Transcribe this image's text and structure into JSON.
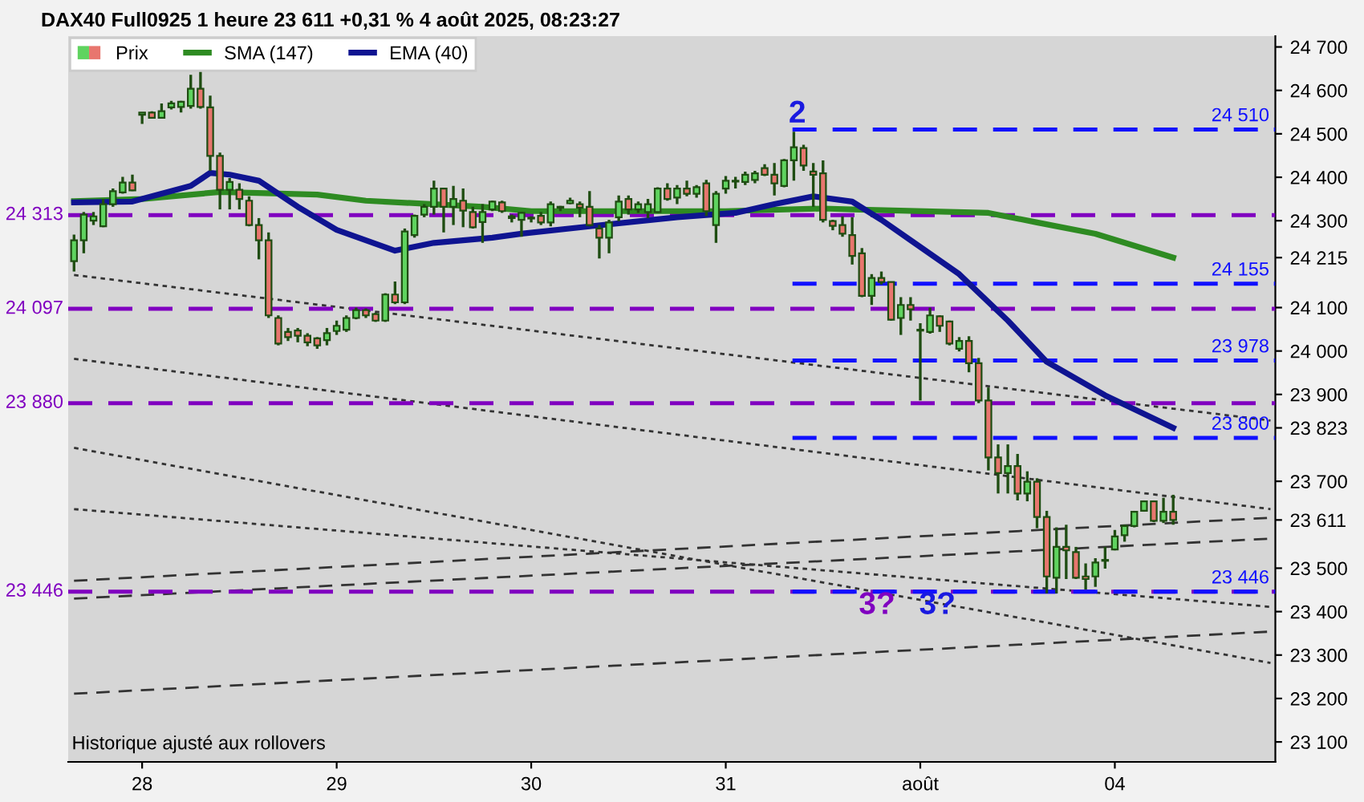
{
  "chart_data": {
    "type": "candlestick",
    "title": "DAX40 Full0925 1 heure 23 611 +0,31 % 4 août 2025, 08:23:27",
    "categories": [
      null,
      null,
      null,
      null,
      null,
      null,
      null,
      "28",
      null,
      null,
      null,
      null,
      null,
      null,
      null,
      null,
      null,
      null,
      null,
      null,
      null,
      null,
      null,
      null,
      null,
      null,
      null,
      "29",
      null,
      null,
      null,
      null,
      null,
      null,
      null,
      null,
      null,
      null,
      null,
      null,
      null,
      null,
      null,
      null,
      null,
      null,
      null,
      "30",
      null,
      null,
      null,
      null,
      null,
      null,
      null,
      null,
      null,
      null,
      null,
      null,
      null,
      null,
      null,
      null,
      null,
      null,
      null,
      "31",
      null,
      null,
      null,
      null,
      null,
      null,
      null,
      null,
      null,
      null,
      null,
      null,
      null,
      null,
      null,
      null,
      null,
      null,
      null,
      "août",
      null,
      null,
      null,
      null,
      null,
      null,
      null,
      null,
      null,
      null,
      null,
      null,
      null,
      null,
      null,
      null,
      null,
      null,
      null,
      "04",
      null,
      null,
      null,
      null,
      null,
      null,
      null,
      null,
      null,
      null,
      null,
      null,
      null,
      null,
      null,
      null
    ],
    "ylim": [
      23054,
      24725
    ],
    "yticks": [
      {
        "value": 23100,
        "label": "23 100"
      },
      {
        "value": 23200,
        "label": "23 200"
      },
      {
        "value": 23300,
        "label": "23 300"
      },
      {
        "value": 23400,
        "label": "23 400"
      },
      {
        "value": 23500,
        "label": "23 500"
      },
      {
        "value": 23611,
        "label": "23 611"
      },
      {
        "value": 23700,
        "label": "23 700"
      },
      {
        "value": 23823,
        "label": "23 823"
      },
      {
        "value": 23900,
        "label": "23 900"
      },
      {
        "value": 24000,
        "label": "24 000"
      },
      {
        "value": 24100,
        "label": "24 100"
      },
      {
        "value": 24215,
        "label": "24 215"
      },
      {
        "value": 24300,
        "label": "24 300"
      },
      {
        "value": 24400,
        "label": "24 400"
      },
      {
        "value": 24500,
        "label": "24 500"
      },
      {
        "value": 24600,
        "label": "24 600"
      },
      {
        "value": 24700,
        "label": "24 700"
      }
    ],
    "legend": "top left",
    "series": [
      {
        "name": "Prix",
        "colors": [
          "#5fd35f",
          "#5fd35f",
          "#5fd35f",
          "#5fd35f",
          "#5fd35f",
          "#5fd35f",
          "#e8766e",
          "#5fd35f",
          "#e8766e",
          "#5fd35f",
          "#5fd35f",
          "#5fd35f",
          "#5fd35f",
          "#e8766e",
          "#e8766e",
          "#e8766e",
          "#5fd35f",
          "#e8766e",
          "#e8766e",
          "#e8766e",
          "#e8766e",
          "#e8766e",
          "#e8766e",
          "#e8766e",
          "#e8766e",
          "#e8766e",
          "#5fd35f",
          "#5fd35f",
          "#5fd35f",
          "#5fd35f",
          "#e8766e",
          "#e8766e",
          "#5fd35f",
          "#e8766e",
          "#5fd35f",
          "#5fd35f",
          "#5fd35f",
          "#5fd35f",
          "#e8766e",
          "#5fd35f",
          "#e8766e",
          "#e8766e",
          "#5fd35f",
          "#5fd35f",
          "#e8766e",
          "#5fd35f",
          "#5fd35f",
          "#5fd35f",
          "#e8766e",
          "#5fd35f",
          "#5fd35f",
          "#5fd35f",
          "#e8766e",
          "#e8766e",
          "#e8766e",
          "#5fd35f",
          "#5fd35f",
          "#e8766e",
          "#5fd35f",
          "#5fd35f",
          "#5fd35f",
          "#e8766e",
          "#5fd35f",
          "#e8766e",
          "#5fd35f",
          "#e8766e",
          "#5fd35f",
          "#5fd35f",
          "#5fd35f",
          "#5fd35f",
          "#5fd35f",
          "#e8766e",
          "#e8766e",
          "#5fd35f",
          "#5fd35f",
          "#e8766e",
          "#e8766e",
          "#e8766e",
          "#e8766e",
          "#e8766e",
          "#e8766e",
          "#e8766e",
          "#5fd35f",
          "#e8766e",
          "#e8766e",
          "#5fd35f",
          "#e8766e",
          "#5fd35f",
          "#5fd35f",
          "#e8766e",
          "#e8766e",
          "#5fd35f",
          "#e8766e",
          "#e8766e",
          "#e8766e",
          "#e8766e",
          "#5fd35f",
          "#e8766e",
          "#5fd35f",
          "#e8766e",
          "#e8766e",
          "#5fd35f",
          "#e8766e",
          "#e8766e",
          "#e8766e",
          "#5fd35f",
          "#5fd35f",
          "#5fd35f",
          "#5fd35f",
          "#5fd35f",
          "#5fd35f",
          "#e8766e",
          "#5fd35f",
          "#e8766e",
          null,
          null,
          null,
          null,
          null,
          null,
          null,
          null,
          null,
          null
        ],
        "ohlc": [
          [
            24207,
            24268,
            24183,
            24255
          ],
          [
            24255,
            24320,
            24225,
            24314
          ],
          [
            24300,
            24320,
            24290,
            24310
          ],
          [
            24287,
            24350,
            24285,
            24338
          ],
          [
            24338,
            24374,
            24332,
            24368
          ],
          [
            24365,
            24401,
            24362,
            24388
          ],
          [
            24388,
            24406,
            24368,
            24370
          ],
          [
            24544,
            24549,
            24523,
            24549
          ],
          [
            24549,
            24552,
            24535,
            24537
          ],
          [
            24537,
            24570,
            24535,
            24552
          ],
          [
            24561,
            24576,
            24556,
            24570
          ],
          [
            24562,
            24576,
            24549,
            24574
          ],
          [
            24564,
            24636,
            24558,
            24604
          ],
          [
            24604,
            24648,
            24558,
            24562
          ],
          [
            24561,
            24588,
            24415,
            24449
          ],
          [
            24449,
            24457,
            24326,
            24371
          ],
          [
            24371,
            24398,
            24326,
            24389
          ],
          [
            24371,
            24386,
            24326,
            24350
          ],
          [
            24346,
            24356,
            24287,
            24290
          ],
          [
            24290,
            24306,
            24211,
            24255
          ],
          [
            24255,
            24273,
            24076,
            24082
          ],
          [
            24076,
            24082,
            24013,
            24017
          ],
          [
            24044,
            24053,
            24023,
            24032
          ],
          [
            24047,
            24053,
            24020,
            24035
          ],
          [
            24035,
            24041,
            24011,
            24020
          ],
          [
            24029,
            24032,
            24005,
            24013
          ],
          [
            24025,
            24053,
            24013,
            24041
          ],
          [
            24046,
            24070,
            24037,
            24058
          ],
          [
            24049,
            24082,
            24044,
            24076
          ],
          [
            24076,
            24100,
            24073,
            24094
          ],
          [
            24094,
            24098,
            24076,
            24082
          ],
          [
            24085,
            24088,
            24067,
            24070
          ],
          [
            24070,
            24133,
            24067,
            24130
          ],
          [
            24130,
            24160,
            24108,
            24112
          ],
          [
            24112,
            24282,
            24108,
            24275
          ],
          [
            24267,
            24314,
            24261,
            24311
          ],
          [
            24314,
            24338,
            24308,
            24332
          ],
          [
            24332,
            24392,
            24314,
            24374
          ],
          [
            24374,
            24374,
            24273,
            24332
          ],
          [
            24332,
            24380,
            24290,
            24350
          ],
          [
            24346,
            24374,
            24285,
            24323
          ],
          [
            24320,
            24332,
            24282,
            24285
          ],
          [
            24297,
            24338,
            24249,
            24320
          ],
          [
            24326,
            24346,
            24322,
            24344
          ],
          [
            24342,
            24346,
            24318,
            24322
          ],
          [
            24306,
            24314,
            24296,
            24310
          ],
          [
            24302,
            24320,
            24263,
            24318
          ],
          [
            24305,
            24310,
            24296,
            24307
          ],
          [
            24311,
            24320,
            24290,
            24296
          ],
          [
            24296,
            24344,
            24287,
            24338
          ],
          [
            24330,
            24334,
            24322,
            24332
          ],
          [
            24340,
            24353,
            24338,
            24346
          ],
          [
            24338,
            24344,
            24308,
            24330
          ],
          [
            24332,
            24368,
            24287,
            24290
          ],
          [
            24282,
            24290,
            24213,
            24261
          ],
          [
            24261,
            24302,
            24225,
            24296
          ],
          [
            24308,
            24358,
            24299,
            24344
          ],
          [
            24350,
            24358,
            24314,
            24326
          ],
          [
            24326,
            24344,
            24318,
            24338
          ],
          [
            24320,
            24350,
            24306,
            24338
          ],
          [
            24320,
            24377,
            24318,
            24374
          ],
          [
            24374,
            24386,
            24346,
            24350
          ],
          [
            24353,
            24382,
            24338,
            24374
          ],
          [
            24374,
            24392,
            24356,
            24362
          ],
          [
            24362,
            24382,
            24353,
            24377
          ],
          [
            24386,
            24394,
            24311,
            24322
          ],
          [
            24290,
            24368,
            24249,
            24362
          ],
          [
            24374,
            24403,
            24362,
            24392
          ],
          [
            24390,
            24401,
            24374,
            24392
          ],
          [
            24389,
            24413,
            24382,
            24406
          ],
          [
            24394,
            24415,
            24386,
            24409
          ],
          [
            24421,
            24430,
            24403,
            24406
          ],
          [
            24406,
            24433,
            24358,
            24386
          ],
          [
            24380,
            24442,
            24377,
            24439
          ],
          [
            24439,
            24505,
            24392,
            24469
          ],
          [
            24467,
            24475,
            24415,
            24427
          ],
          [
            24413,
            24433,
            24332,
            24406
          ],
          [
            24409,
            24439,
            24296,
            24302
          ],
          [
            24299,
            24302,
            24278,
            24288
          ],
          [
            24290,
            24310,
            24263,
            24270
          ],
          [
            24267,
            24308,
            24199,
            24219
          ],
          [
            24225,
            24237,
            24124,
            24127
          ],
          [
            24127,
            24177,
            24106,
            24168
          ],
          [
            24168,
            24183,
            24153,
            24159
          ],
          [
            24159,
            24159,
            24070,
            24072
          ],
          [
            24076,
            24124,
            24037,
            24106
          ],
          [
            24106,
            24124,
            24070,
            24096
          ],
          [
            24047,
            24064,
            23886,
            24049
          ],
          [
            24044,
            24100,
            24040,
            24082
          ],
          [
            24080,
            24082,
            24044,
            24058
          ],
          [
            24068,
            24070,
            24013,
            24017
          ],
          [
            24005,
            24032,
            23999,
            24023
          ],
          [
            24023,
            24034,
            23951,
            23972
          ],
          [
            23972,
            23984,
            23880,
            23886
          ],
          [
            23886,
            23916,
            23725,
            23755
          ],
          [
            23755,
            23785,
            23672,
            23719
          ],
          [
            23719,
            23785,
            23672,
            23735
          ],
          [
            23735,
            23763,
            23656,
            23672
          ],
          [
            23672,
            23723,
            23654,
            23699
          ],
          [
            23699,
            23707,
            23592,
            23618
          ],
          [
            23618,
            23632,
            23442,
            23481
          ],
          [
            23478,
            23594,
            23442,
            23549
          ],
          [
            23549,
            23600,
            23475,
            23541
          ],
          [
            23537,
            23549,
            23475,
            23478
          ],
          [
            23481,
            23511,
            23451,
            23475
          ],
          [
            23481,
            23523,
            23457,
            23513
          ],
          [
            23517,
            23549,
            23499,
            23519
          ],
          [
            23543,
            23588,
            23541,
            23573
          ],
          [
            23576,
            23600,
            23561,
            23597
          ],
          [
            23597,
            23632,
            23594,
            23630
          ],
          [
            23632,
            23656,
            23630,
            23654
          ],
          [
            23654,
            23656,
            23606,
            23609
          ],
          [
            23609,
            23662,
            23604,
            23630
          ],
          [
            23630,
            23669,
            23600,
            23611
          ],
          null,
          null,
          null,
          null,
          null,
          null,
          null,
          null,
          null,
          null
        ]
      },
      {
        "name": "SMA (147)",
        "type": "line",
        "color": "#2e8b22",
        "values": [
          24345,
          null,
          null,
          null,
          null,
          null,
          null,
          24350,
          null,
          null,
          null,
          null,
          null,
          null,
          null,
          24366,
          null,
          null,
          null,
          null,
          null,
          null,
          null,
          null,
          null,
          24360,
          null,
          null,
          null,
          null,
          24346,
          null,
          null,
          null,
          null,
          null,
          null,
          null,
          null,
          null,
          null,
          null,
          24332,
          null,
          null,
          null,
          null,
          24322,
          null,
          null,
          null,
          null,
          null,
          null,
          null,
          null,
          null,
          null,
          null,
          null,
          null,
          null,
          null,
          null,
          null,
          null,
          null,
          24322,
          null,
          null,
          null,
          null,
          null,
          null,
          null,
          null,
          null,
          24328,
          null,
          null,
          24326,
          null,
          null,
          null,
          null,
          null,
          null,
          null,
          null,
          null,
          null,
          null,
          null,
          null,
          24318,
          null,
          null,
          null,
          null,
          24296,
          null,
          null,
          null,
          null,
          null,
          24270,
          null,
          null,
          null,
          null,
          null,
          null,
          null,
          24215,
          null,
          null,
          null,
          null,
          null,
          null,
          null,
          null,
          null,
          null
        ]
      },
      {
        "name": "EMA (40)",
        "type": "line",
        "color": "#0f1491",
        "values": [
          24342,
          null,
          null,
          null,
          null,
          null,
          24344,
          null,
          null,
          null,
          null,
          null,
          24380,
          null,
          24410,
          null,
          24406,
          null,
          null,
          24392,
          null,
          null,
          null,
          24332,
          null,
          null,
          null,
          24279,
          null,
          null,
          null,
          null,
          null,
          24231,
          null,
          null,
          null,
          24249,
          null,
          null,
          null,
          null,
          null,
          24261,
          null,
          null,
          24270,
          null,
          null,
          null,
          null,
          null,
          null,
          24287,
          null,
          null,
          null,
          null,
          null,
          null,
          null,
          null,
          24308,
          null,
          null,
          null,
          null,
          null,
          24318,
          null,
          null,
          null,
          24338,
          null,
          null,
          null,
          24356,
          null,
          null,
          null,
          24344,
          null,
          null,
          24302,
          null,
          null,
          24255,
          null,
          null,
          null,
          null,
          24177,
          null,
          null,
          null,
          null,
          24070,
          null,
          null,
          null,
          23975,
          null,
          null,
          null,
          null,
          null,
          23898,
          null,
          null,
          null,
          null,
          null,
          null,
          23823,
          null,
          null,
          null,
          null,
          null,
          null,
          null,
          null,
          null,
          null
        ]
      },
      {
        "type": "line",
        "line_style": "dotted",
        "color": "#333333",
        "values": [
          24175,
          null,
          null,
          null,
          null,
          null,
          null,
          null,
          null,
          null,
          null,
          null,
          null,
          null,
          null,
          null,
          null,
          null,
          null,
          null,
          null,
          null,
          null,
          null,
          null,
          null,
          null,
          null,
          null,
          null,
          null,
          null,
          null,
          null,
          null,
          null,
          null,
          null,
          null,
          null,
          null,
          null,
          null,
          null,
          null,
          null,
          null,
          null,
          null,
          null,
          null,
          null,
          null,
          null,
          null,
          null,
          null,
          null,
          null,
          null,
          null,
          null,
          null,
          null,
          null,
          null,
          null,
          null,
          null,
          null,
          null,
          null,
          null,
          null,
          null,
          null,
          null,
          null,
          null,
          null,
          null,
          null,
          null,
          null,
          null,
          null,
          null,
          null,
          null,
          null,
          null,
          null,
          null,
          null,
          null,
          null,
          null,
          null,
          null,
          null,
          null,
          null,
          null,
          null,
          null,
          null,
          null,
          null,
          null,
          null,
          null,
          null,
          null,
          null,
          null,
          null,
          null,
          null,
          null,
          null,
          null,
          null,
          null,
          23840
        ]
      },
      {
        "type": "line",
        "line_style": "dotted",
        "color": "#333333",
        "values": [
          23982,
          null,
          null,
          null,
          null,
          null,
          null,
          null,
          null,
          null,
          null,
          null,
          null,
          null,
          null,
          null,
          null,
          null,
          null,
          null,
          null,
          null,
          null,
          null,
          null,
          null,
          null,
          null,
          null,
          null,
          null,
          null,
          null,
          null,
          null,
          null,
          null,
          null,
          null,
          null,
          null,
          null,
          null,
          null,
          null,
          null,
          null,
          null,
          null,
          null,
          null,
          null,
          null,
          null,
          null,
          null,
          null,
          null,
          null,
          null,
          null,
          null,
          null,
          null,
          null,
          null,
          null,
          null,
          null,
          null,
          null,
          null,
          null,
          null,
          null,
          null,
          null,
          null,
          null,
          null,
          null,
          null,
          null,
          null,
          null,
          null,
          null,
          null,
          null,
          null,
          null,
          null,
          null,
          null,
          null,
          null,
          null,
          null,
          null,
          null,
          null,
          null,
          null,
          null,
          null,
          null,
          null,
          null,
          null,
          null,
          null,
          null,
          null,
          null,
          null,
          null,
          null,
          null,
          null,
          null,
          null,
          null,
          null,
          23636
        ]
      },
      {
        "type": "line",
        "line_style": "dotted",
        "color": "#333333",
        "values": [
          23777,
          null,
          null,
          null,
          null,
          null,
          null,
          null,
          null,
          null,
          null,
          null,
          null,
          null,
          null,
          null,
          null,
          null,
          null,
          null,
          null,
          null,
          null,
          null,
          null,
          null,
          null,
          null,
          null,
          null,
          null,
          null,
          null,
          null,
          null,
          null,
          null,
          null,
          null,
          null,
          null,
          null,
          null,
          null,
          null,
          null,
          null,
          null,
          null,
          null,
          null,
          null,
          null,
          null,
          null,
          null,
          null,
          null,
          null,
          null,
          null,
          null,
          null,
          null,
          null,
          null,
          null,
          null,
          null,
          null,
          null,
          null,
          null,
          null,
          null,
          null,
          null,
          null,
          null,
          null,
          null,
          null,
          null,
          null,
          null,
          null,
          null,
          null,
          null,
          null,
          null,
          null,
          null,
          null,
          null,
          null,
          null,
          null,
          null,
          null,
          null,
          null,
          null,
          null,
          null,
          null,
          null,
          null,
          null,
          null,
          null,
          null,
          null,
          null,
          null,
          null,
          null,
          null,
          null,
          null,
          null,
          null,
          null,
          23282
        ]
      },
      {
        "type": "line",
        "line_style": "dotted",
        "color": "#333333",
        "values": [
          23636,
          null,
          null,
          null,
          null,
          null,
          null,
          null,
          null,
          null,
          null,
          null,
          null,
          null,
          null,
          null,
          null,
          null,
          null,
          null,
          null,
          null,
          null,
          null,
          null,
          null,
          null,
          null,
          null,
          null,
          null,
          null,
          null,
          null,
          null,
          null,
          null,
          null,
          null,
          null,
          null,
          null,
          null,
          null,
          null,
          null,
          null,
          null,
          null,
          null,
          null,
          null,
          null,
          null,
          null,
          null,
          null,
          null,
          null,
          null,
          null,
          null,
          null,
          null,
          null,
          null,
          null,
          null,
          null,
          null,
          null,
          null,
          null,
          null,
          null,
          null,
          null,
          null,
          null,
          null,
          null,
          null,
          null,
          null,
          null,
          null,
          null,
          null,
          null,
          null,
          null,
          null,
          null,
          null,
          null,
          null,
          null,
          null,
          null,
          null,
          null,
          null,
          null,
          null,
          null,
          null,
          null,
          null,
          null,
          null,
          null,
          null,
          null,
          null,
          null,
          null,
          null,
          null,
          null,
          null,
          null,
          null,
          null,
          23411
        ]
      },
      {
        "type": "line",
        "line_style": "dashed",
        "color": "#333333",
        "values": [
          23471,
          null,
          null,
          null,
          null,
          null,
          null,
          null,
          null,
          null,
          null,
          null,
          null,
          null,
          null,
          null,
          null,
          null,
          null,
          null,
          null,
          null,
          null,
          null,
          null,
          null,
          null,
          null,
          null,
          null,
          null,
          null,
          null,
          null,
          null,
          null,
          null,
          null,
          null,
          null,
          null,
          null,
          null,
          null,
          null,
          null,
          null,
          null,
          null,
          null,
          null,
          null,
          null,
          null,
          null,
          null,
          null,
          null,
          null,
          null,
          null,
          null,
          null,
          null,
          null,
          null,
          null,
          null,
          null,
          null,
          null,
          null,
          null,
          null,
          null,
          null,
          null,
          null,
          null,
          null,
          null,
          null,
          null,
          null,
          null,
          null,
          null,
          null,
          null,
          null,
          null,
          null,
          null,
          null,
          null,
          null,
          null,
          null,
          null,
          null,
          null,
          null,
          null,
          null,
          null,
          null,
          null,
          null,
          null,
          null,
          null,
          null,
          null,
          null,
          null,
          null,
          null,
          null,
          null,
          null,
          null,
          null,
          null,
          23616
        ]
      },
      {
        "type": "line",
        "line_style": "dashed",
        "color": "#333333",
        "values": [
          23430,
          null,
          null,
          null,
          null,
          null,
          null,
          null,
          null,
          null,
          null,
          null,
          null,
          null,
          null,
          null,
          null,
          null,
          null,
          null,
          null,
          null,
          null,
          null,
          null,
          null,
          null,
          null,
          null,
          null,
          null,
          null,
          null,
          null,
          null,
          null,
          null,
          null,
          null,
          null,
          null,
          null,
          null,
          null,
          null,
          null,
          null,
          null,
          null,
          null,
          null,
          null,
          null,
          null,
          null,
          null,
          null,
          null,
          null,
          null,
          null,
          null,
          null,
          null,
          null,
          null,
          null,
          null,
          null,
          null,
          null,
          null,
          null,
          null,
          null,
          null,
          null,
          null,
          null,
          null,
          null,
          null,
          null,
          null,
          null,
          null,
          null,
          null,
          null,
          null,
          null,
          null,
          null,
          null,
          null,
          null,
          null,
          null,
          null,
          null,
          null,
          null,
          null,
          null,
          null,
          null,
          null,
          null,
          null,
          null,
          null,
          null,
          null,
          null,
          null,
          null,
          null,
          null,
          null,
          null,
          null,
          null,
          null,
          23568
        ]
      },
      {
        "type": "line",
        "line_style": "dashed",
        "color": "#333333",
        "values": [
          23211,
          null,
          null,
          null,
          null,
          null,
          null,
          null,
          null,
          null,
          null,
          null,
          null,
          null,
          null,
          null,
          null,
          null,
          null,
          null,
          null,
          null,
          null,
          null,
          null,
          null,
          null,
          null,
          null,
          null,
          null,
          null,
          null,
          null,
          null,
          null,
          null,
          null,
          null,
          null,
          null,
          null,
          null,
          null,
          null,
          null,
          null,
          null,
          null,
          null,
          null,
          null,
          null,
          null,
          null,
          null,
          null,
          null,
          null,
          null,
          null,
          null,
          null,
          null,
          null,
          null,
          null,
          null,
          null,
          null,
          null,
          null,
          null,
          null,
          null,
          null,
          null,
          null,
          null,
          null,
          null,
          null,
          null,
          null,
          null,
          null,
          null,
          null,
          null,
          null,
          null,
          null,
          null,
          null,
          null,
          null,
          null,
          null,
          null,
          null,
          null,
          null,
          null,
          null,
          null,
          null,
          null,
          null,
          null,
          null,
          null,
          null,
          null,
          null,
          null,
          null,
          null,
          null,
          null,
          null,
          null,
          null,
          null,
          23354
        ]
      }
    ],
    "ref_lines": [
      {
        "axis": "y",
        "value": 24313,
        "label": "24 313",
        "color": "#8000c0",
        "line_style": "dashed"
      },
      {
        "axis": "y",
        "value": 24097,
        "label": "24 097",
        "color": "#8000c0",
        "line_style": "dashed"
      },
      {
        "axis": "y",
        "value": 23880,
        "label": "23 880",
        "color": "#8000c0",
        "line_style": "dashed"
      },
      {
        "axis": "y",
        "value": 23446,
        "label": "23 446",
        "color": "#8000c0",
        "line_style": "dashed"
      },
      {
        "axis": "y",
        "value": 24510,
        "label": "24 510",
        "color": "#1010ff",
        "line_style": "dashed"
      },
      {
        "axis": "y",
        "value": 24155,
        "label": "24 155",
        "color": "#1010ff",
        "line_style": "dashed"
      },
      {
        "axis": "y",
        "value": 23978,
        "label": "23 978",
        "color": "#1010ff",
        "line_style": "dashed"
      },
      {
        "axis": "y",
        "value": 23800,
        "label": "23 800",
        "color": "#1010ff",
        "line_style": "dashed"
      },
      {
        "axis": "y",
        "value": 23446,
        "label": "23 446",
        "color": "#1010ff",
        "line_style": "dashed"
      }
    ],
    "annotations": [
      "2",
      "3?",
      "3?",
      "Historique ajusté aux rollovers"
    ]
  }
}
